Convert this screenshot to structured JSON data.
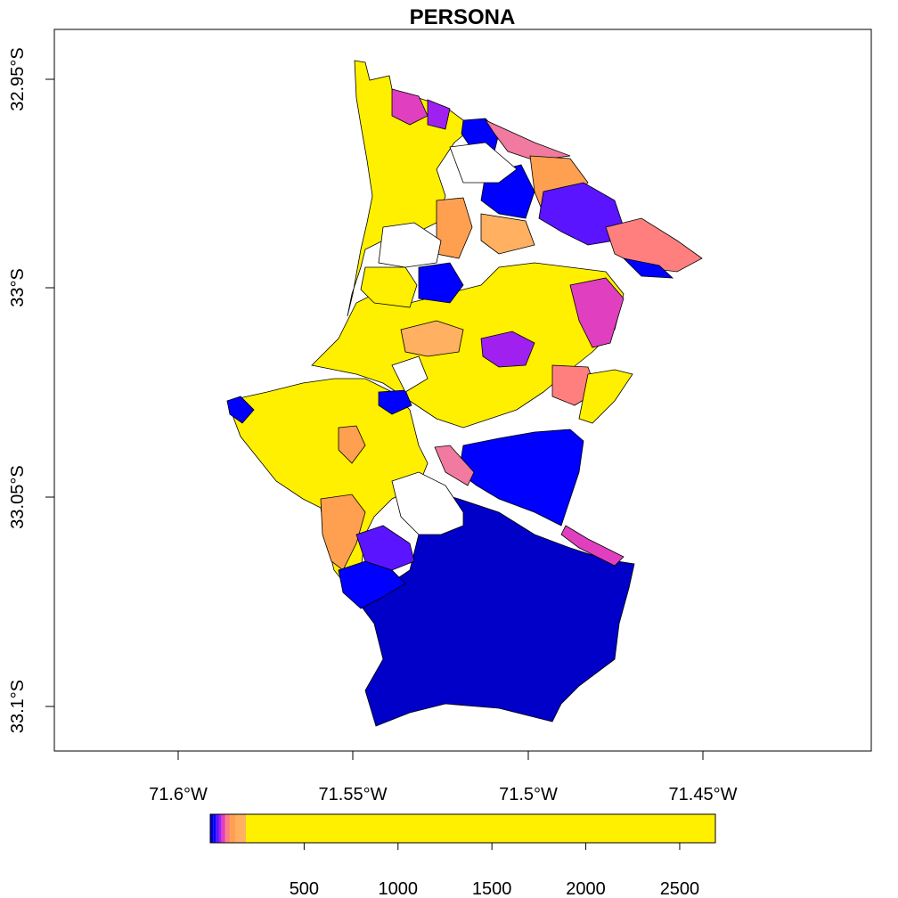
{
  "map": {
    "title": "PERSONA",
    "x_ticks": [
      "71.6°W",
      "71.55°W",
      "71.5°W",
      "71.45°W"
    ],
    "y_ticks": [
      "32.95°S",
      "33°S",
      "33.05°S",
      "33.1°S"
    ],
    "x_tick_values": [
      -71.6,
      -71.55,
      -71.5,
      -71.45
    ],
    "y_tick_values": [
      -32.95,
      -33.0,
      -33.05,
      -33.1
    ],
    "colors": {
      "dark_blue": "#0000C8",
      "blue": "#0000FF",
      "blue_violet": "#5A14FF",
      "violet": "#A020F0",
      "magenta": "#E040C0",
      "pink": "#F07AA0",
      "salmon": "#FF7F7F",
      "orange": "#FFA050",
      "light_orange": "#FFB060",
      "yellow": "#FFF000"
    }
  },
  "legend": {
    "tick_labels": [
      "500",
      "1000",
      "1500",
      "2000",
      "2500"
    ],
    "tick_values": [
      500,
      1000,
      1500,
      2000,
      2500
    ],
    "range": [
      0,
      2690
    ],
    "breaks": [
      {
        "upto": 15,
        "color": "#0000C8"
      },
      {
        "upto": 30,
        "color": "#0000FF"
      },
      {
        "upto": 45,
        "color": "#5A14FF"
      },
      {
        "upto": 60,
        "color": "#A020F0"
      },
      {
        "upto": 80,
        "color": "#E040C0"
      },
      {
        "upto": 105,
        "color": "#FF7F7F"
      },
      {
        "upto": 135,
        "color": "#FFA050"
      },
      {
        "upto": 190,
        "color": "#FFB060"
      },
      {
        "upto": 2690,
        "color": "#FFF000"
      }
    ]
  }
}
